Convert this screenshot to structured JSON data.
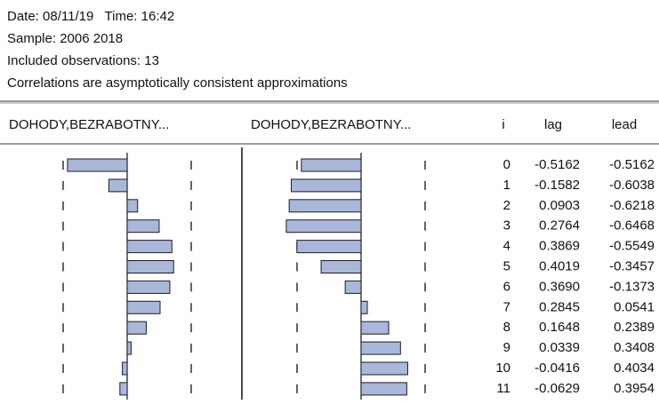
{
  "header": {
    "date": "Date: 08/11/19   Time: 16:42",
    "sample": "Sample: 2006 2018",
    "observations": "Included observations: 13",
    "note": "Correlations are asymptotically consistent approximations"
  },
  "table": {
    "columns": [
      "DOHODY,BEZRABOTNY...",
      "DOHODY,BEZRABOTNY...",
      "i",
      "lag",
      "lead"
    ],
    "i": [
      0,
      1,
      2,
      3,
      4,
      5,
      6,
      7,
      8,
      9,
      10,
      11
    ],
    "lag": {
      "values": [
        -0.5162,
        -0.1582,
        0.0903,
        0.2764,
        0.3869,
        0.4019,
        0.369,
        0.2845,
        0.1648,
        0.0339,
        -0.0416,
        -0.0629
      ],
      "value_labels": [
        "-0.5162",
        "-0.1582",
        "0.0903",
        "0.2764",
        "0.3869",
        "0.4019",
        "0.3690",
        "0.2845",
        "0.1648",
        "0.0339",
        "-0.0416",
        "-0.0629"
      ]
    },
    "lead": {
      "values": [
        -0.5162,
        -0.6038,
        -0.6218,
        -0.6468,
        -0.5549,
        -0.3457,
        -0.1373,
        0.0541,
        0.2389,
        0.3408,
        0.4034,
        0.3954
      ],
      "value_labels": [
        "-0.5162",
        "-0.6038",
        "-0.6218",
        "-0.6468",
        "-0.5549",
        "-0.3457",
        "-0.1373",
        "0.0541",
        "0.2389",
        "0.3408",
        "0.4034",
        "0.3954"
      ]
    }
  }
}
